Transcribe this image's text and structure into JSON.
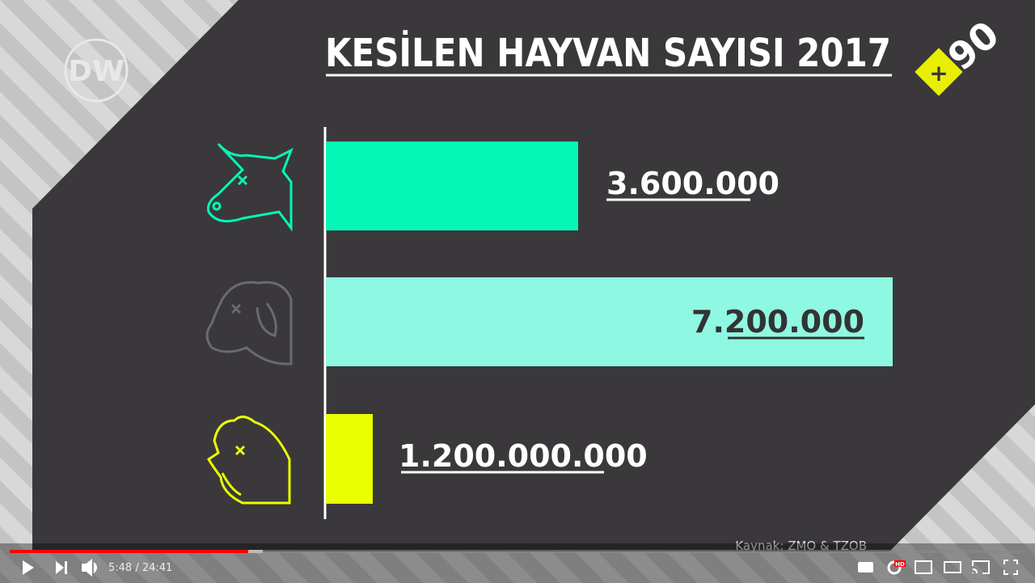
{
  "video": {
    "title": "KESİLEN HAYVAN SAYISI 2017",
    "logo": "DW",
    "badge_plus": "+",
    "badge_number": "90",
    "rows": [
      {
        "label": "3.600.000"
      },
      {
        "label": "7.200.000"
      },
      {
        "label": "1.200.000.000"
      }
    ],
    "source": "Kaynak: ZMO & TZOB"
  },
  "player": {
    "time": "5:48 / 24:41",
    "hd": "HD"
  }
}
